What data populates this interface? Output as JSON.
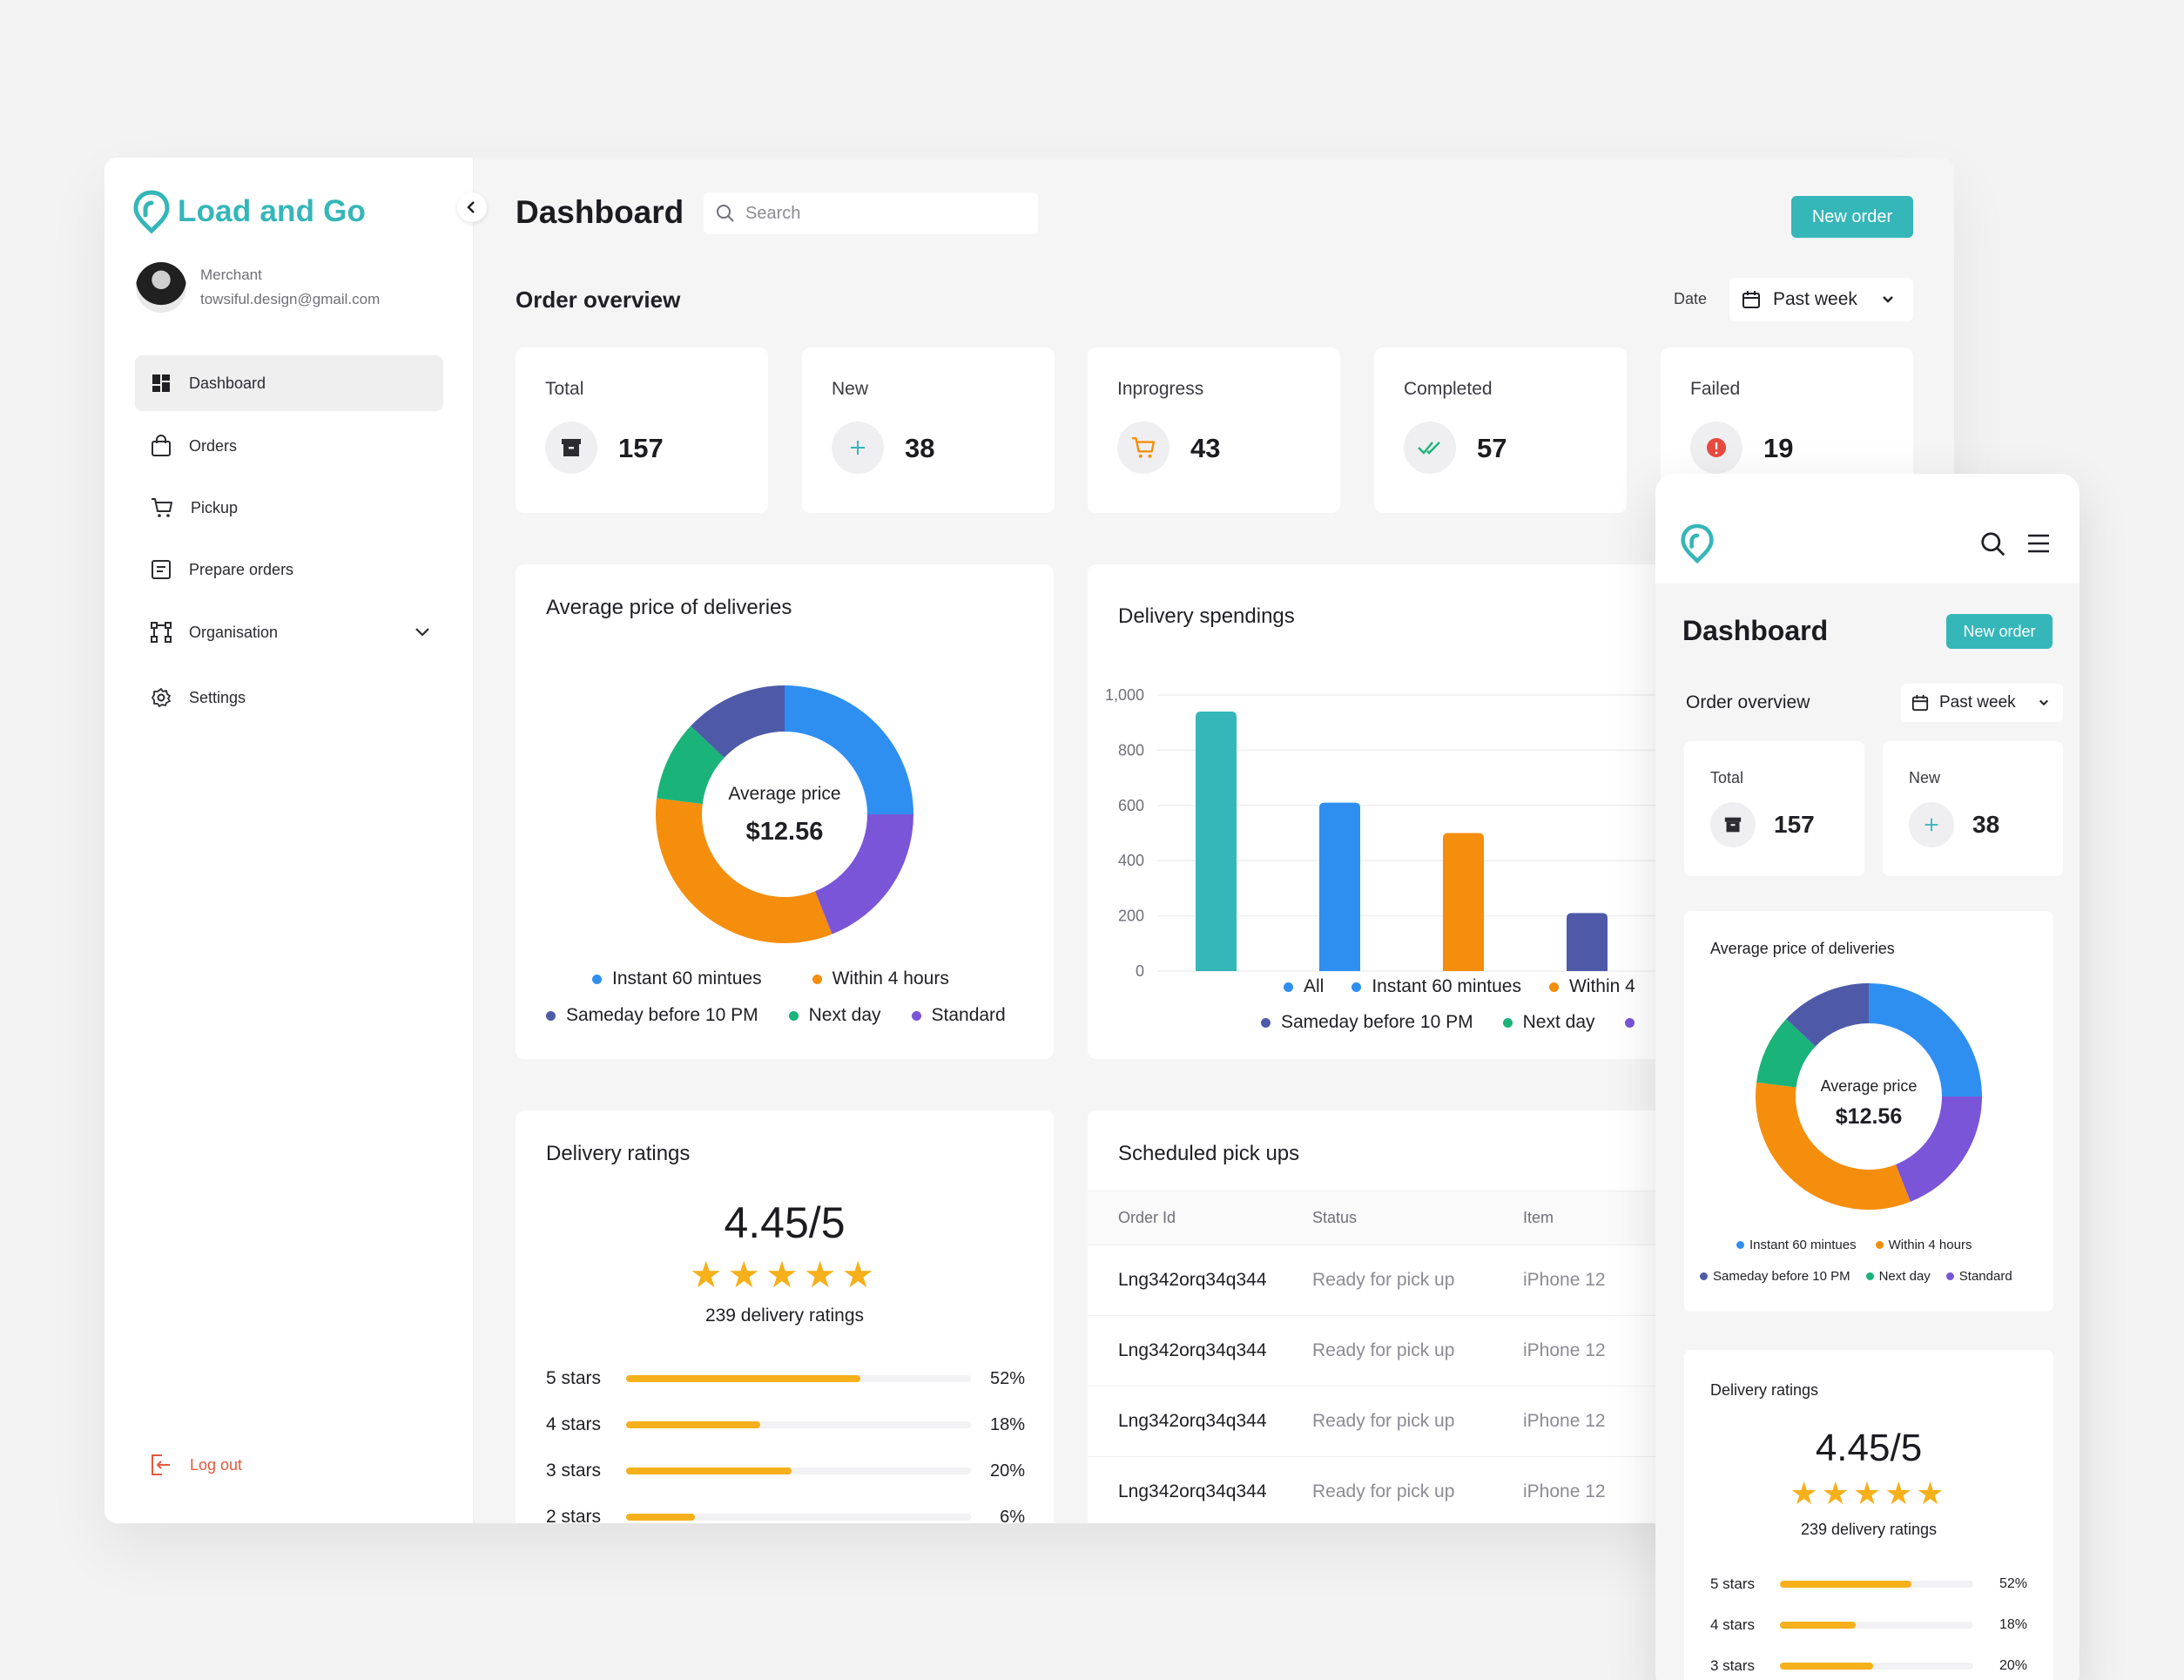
{
  "app": {
    "name": "Load and Go"
  },
  "user": {
    "role": "Merchant",
    "email": "towsiful.design@gmail.com"
  },
  "sidebar": {
    "items": [
      {
        "label": "Dashboard",
        "icon": "dashboard-icon",
        "active": true
      },
      {
        "label": "Orders",
        "icon": "bag-icon"
      },
      {
        "label": "Pickup",
        "icon": "cart-icon"
      },
      {
        "label": "Prepare orders",
        "icon": "list-icon"
      },
      {
        "label": "Organisation",
        "icon": "organisation-icon",
        "has_submenu": true
      },
      {
        "label": "Settings",
        "icon": "gear-icon"
      }
    ],
    "logout_label": "Log out"
  },
  "header": {
    "title": "Dashboard",
    "search_placeholder": "Search",
    "new_order_label": "New order"
  },
  "overview": {
    "title": "Order overview",
    "date_label": "Date",
    "date_value": "Past week",
    "stats": [
      {
        "label": "Total",
        "value": "157",
        "icon": "archive-icon"
      },
      {
        "label": "New",
        "value": "38",
        "icon": "plus-icon"
      },
      {
        "label": "Inprogress",
        "value": "43",
        "icon": "cart-icon"
      },
      {
        "label": "Completed",
        "value": "57",
        "icon": "double-check-icon"
      },
      {
        "label": "Failed",
        "value": "19",
        "icon": "alert-icon"
      }
    ]
  },
  "colors": {
    "brand": "#35b6b8",
    "instant": "#2f8ff0",
    "within4": "#f58e0c",
    "sameday": "#4e5aa8",
    "nextday": "#1ab37a",
    "standard": "#7a55d8",
    "star": "#f5b01b",
    "danger": "#e35a3f"
  },
  "avg_price": {
    "title": "Average price of deliveries",
    "center_label": "Average price",
    "center_value": "$12.56",
    "legend": [
      "Instant 60 mintues",
      "Within 4 hours",
      "Sameday before 10 PM",
      "Next day",
      "Standard"
    ]
  },
  "spendings": {
    "title": "Delivery spendings",
    "legend": [
      "All",
      "Instant 60 mintues",
      "Within 4",
      "Sameday before 10 PM",
      "Next day"
    ]
  },
  "ratings": {
    "title": "Delivery ratings",
    "score": "4.45/5",
    "stars": "★★★★★",
    "count_text": "239 delivery ratings",
    "rows": [
      {
        "label": "5 stars",
        "pct_text": "52%",
        "fraction": 0.68
      },
      {
        "label": "4 stars",
        "pct_text": "18%",
        "fraction": 0.39
      },
      {
        "label": "3 stars",
        "pct_text": "20%",
        "fraction": 0.48
      },
      {
        "label": "2 stars",
        "pct_text": "6%",
        "fraction": 0.2
      }
    ]
  },
  "pickups": {
    "title": "Scheduled pick ups",
    "columns": [
      "Order Id",
      "Status",
      "Item"
    ],
    "rows": [
      {
        "order_id": "Lng342orq34q344",
        "status": "Ready for pick up",
        "item": "iPhone 12"
      },
      {
        "order_id": "Lng342orq34q344",
        "status": "Ready for pick up",
        "item": "iPhone 12"
      },
      {
        "order_id": "Lng342orq34q344",
        "status": "Ready for pick up",
        "item": "iPhone 12"
      },
      {
        "order_id": "Lng342orq34q344",
        "status": "Ready for pick up",
        "item": "iPhone 12"
      }
    ]
  },
  "mobile": {
    "title": "Dashboard",
    "new_order_label": "New order",
    "overview_title": "Order overview",
    "date_value": "Past week",
    "stats": [
      {
        "label": "Total",
        "value": "157"
      },
      {
        "label": "New",
        "value": "38"
      }
    ],
    "avg_title": "Average price of deliveries",
    "legend": [
      "Instant 60 mintues",
      "Within 4 hours",
      "Sameday before 10 PM",
      "Next day",
      "Standard"
    ],
    "ratings_title": "Delivery ratings",
    "rating_rows": [
      {
        "label": "5 stars",
        "pct_text": "52%",
        "fraction": 0.68
      },
      {
        "label": "4 stars",
        "pct_text": "18%",
        "fraction": 0.39
      },
      {
        "label": "3 stars",
        "pct_text": "20%",
        "fraction": 0.48
      }
    ]
  },
  "chart_data": [
    {
      "type": "pie",
      "variant": "donut",
      "title": "Average price of deliveries",
      "categories": [
        "Instant 60 mintues",
        "Standard",
        "Within 4 hours",
        "Next day",
        "Sameday before 10 PM"
      ],
      "values": [
        25,
        19,
        33,
        10,
        13
      ],
      "colors": [
        "#2f8ff0",
        "#7a55d8",
        "#f58e0c",
        "#1ab37a",
        "#4e5aa8"
      ]
    },
    {
      "type": "bar",
      "title": "Delivery spendings",
      "categories": [
        "All",
        "Instant 60 mintues",
        "Within 4",
        "Sameday before 10 PM"
      ],
      "values": [
        940,
        610,
        500,
        210
      ],
      "colors": [
        "#35b6b8",
        "#2f8ff0",
        "#f58e0c",
        "#4e5aa8"
      ],
      "ylim": [
        0,
        1000
      ],
      "yticks": [
        "1,000",
        "800",
        "600",
        "400",
        "200",
        "0"
      ],
      "grid": true
    }
  ]
}
